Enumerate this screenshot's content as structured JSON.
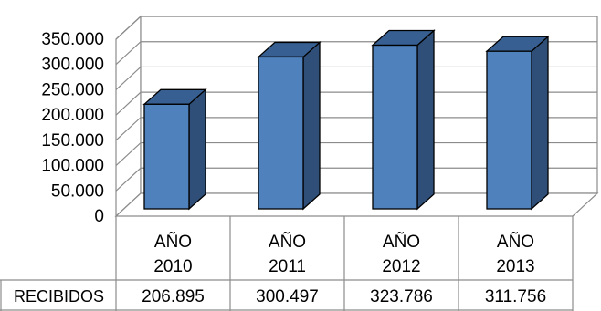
{
  "chart_data": {
    "type": "bar",
    "style": "3d-column",
    "categories": [
      [
        "AÑO",
        "2010"
      ],
      [
        "AÑO",
        "2011"
      ],
      [
        "AÑO",
        "2012"
      ],
      [
        "AÑO",
        "2013"
      ]
    ],
    "series": [
      {
        "name": "RECIBIDOS",
        "values": [
          206895,
          300497,
          323786,
          311756
        ],
        "value_labels": [
          "206.895",
          "300.497",
          "323.786",
          "311.756"
        ]
      }
    ],
    "yticks": [
      "0",
      "50.000",
      "100.000",
      "150.000",
      "200.000",
      "250.000",
      "300.000",
      "350.000"
    ],
    "ylim": [
      0,
      350000
    ],
    "grid": true,
    "data_table": true,
    "colors": {
      "bar_front": "#4f81bd",
      "bar_side": "#2f4f78",
      "bar_top": "#375f91",
      "outline": "#000000"
    }
  }
}
